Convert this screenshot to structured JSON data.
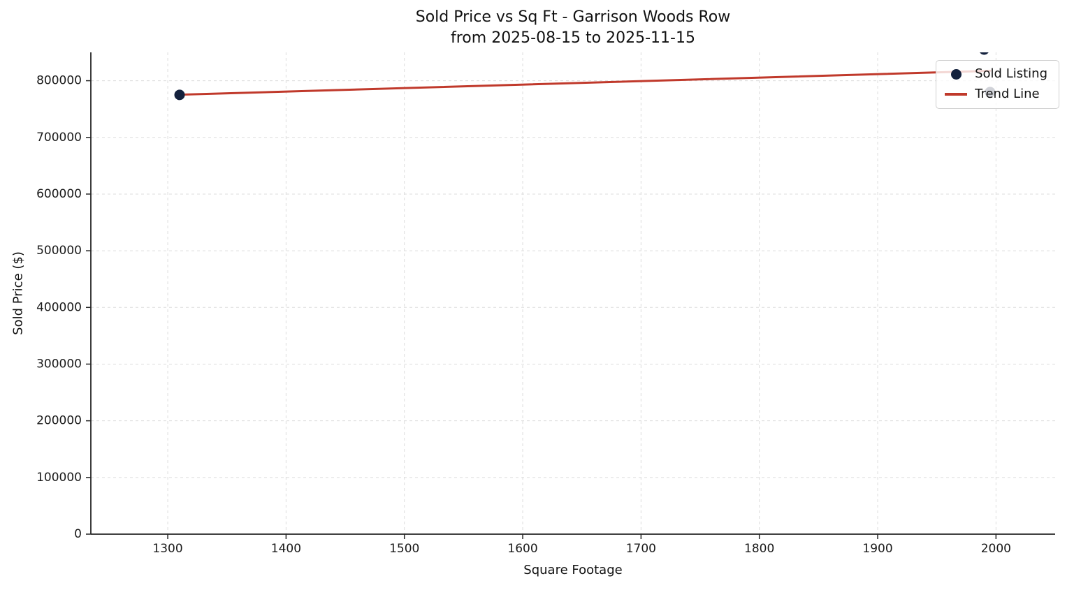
{
  "chart_data": {
    "type": "scatter",
    "title": "Sold Price vs Sq Ft - Garrison Woods Row",
    "subtitle": "from 2025-08-15 to 2025-11-15",
    "xlabel": "Square Footage",
    "ylabel": "Sold Price ($)",
    "xlim": [
      1235,
      2050
    ],
    "ylim": [
      0,
      850000
    ],
    "xticks": [
      1300,
      1400,
      1500,
      1600,
      1700,
      1800,
      1900,
      2000
    ],
    "yticks": [
      0,
      100000,
      200000,
      300000,
      400000,
      500000,
      600000,
      700000,
      800000
    ],
    "grid": true,
    "grid_color": "#dcdcdc",
    "spine_color": "#262626",
    "series": [
      {
        "name": "Sold Listing",
        "kind": "scatter",
        "color": "#14213d",
        "points": [
          {
            "x": 1310,
            "y": 775000
          },
          {
            "x": 1990,
            "y": 855000
          },
          {
            "x": 1995,
            "y": 780000
          }
        ]
      },
      {
        "name": "Trend Line",
        "kind": "line",
        "color": "#c0392b",
        "points": [
          {
            "x": 1310,
            "y": 775300
          },
          {
            "x": 1995,
            "y": 817500
          }
        ]
      }
    ],
    "legend": {
      "position": "upper right",
      "items": [
        {
          "label": "Sold Listing",
          "marker": "dot",
          "color": "#14213d"
        },
        {
          "label": "Trend Line",
          "marker": "line",
          "color": "#c0392b"
        }
      ]
    }
  }
}
